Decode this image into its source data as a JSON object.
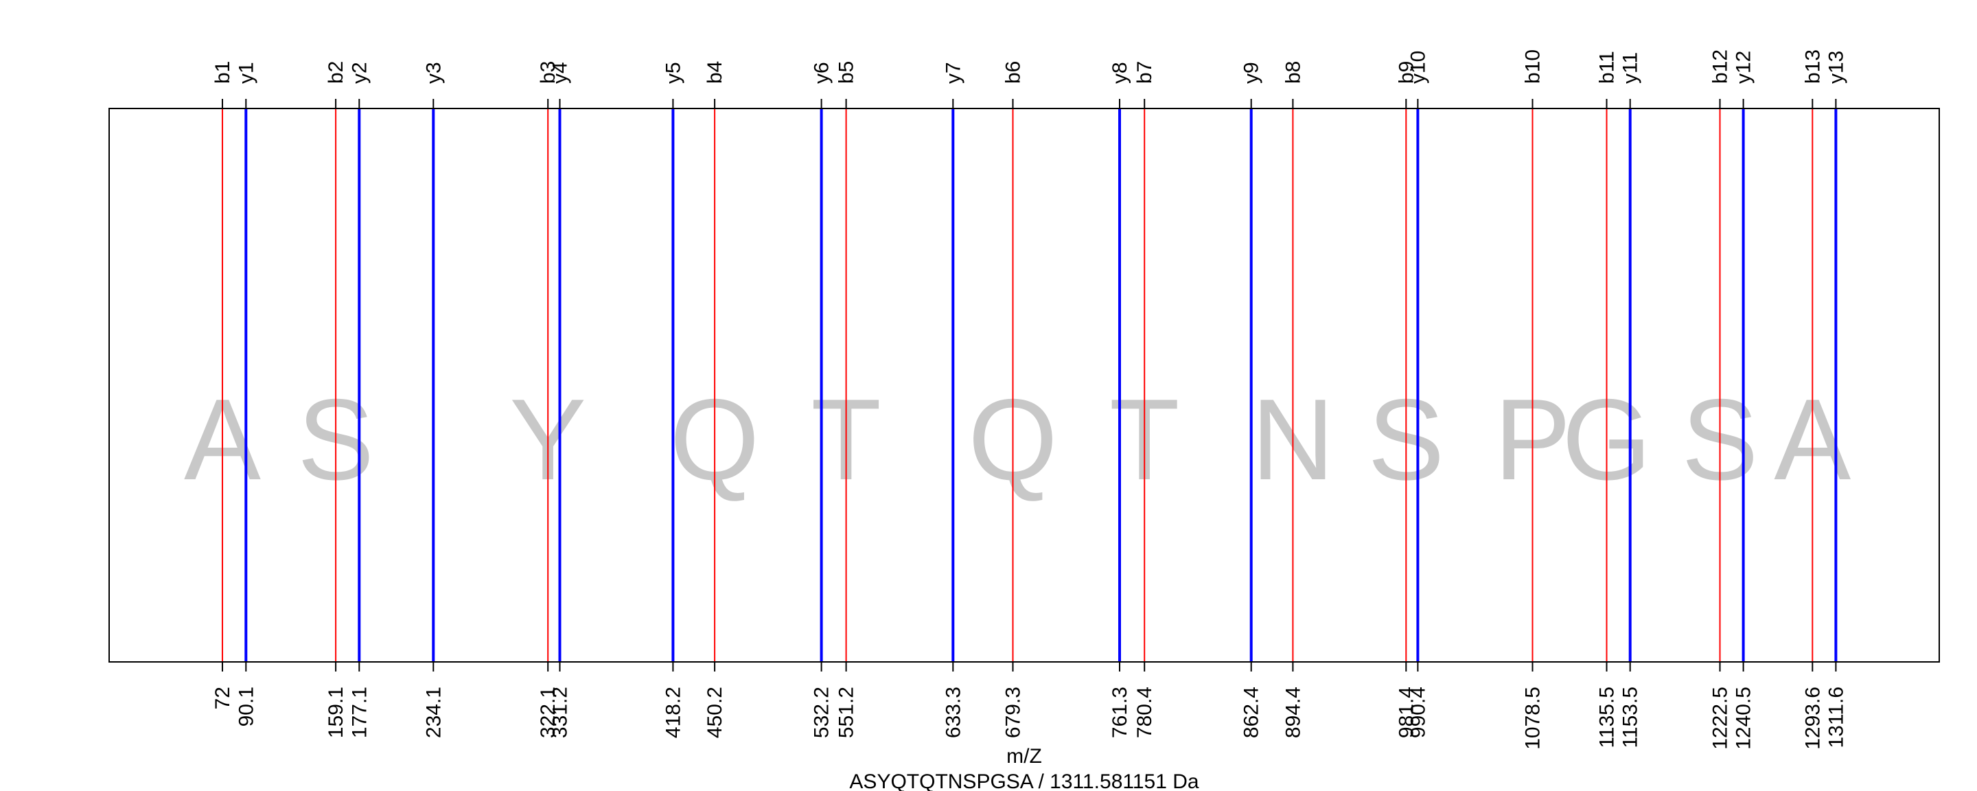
{
  "chart_data": {
    "type": "spectrum",
    "xlabel": "m/Z",
    "caption": "ASYQTQTNSPGSA / 1311.581151 Da",
    "peptide": "ASYQTQTNSPGSA",
    "xlim": [
      -15,
      1391
    ],
    "colors": {
      "b": "#ff0000",
      "y": "#0000ff",
      "residue": "#c8c8c8"
    },
    "series": [
      {
        "name": "b",
        "color": "#ff0000",
        "labels": [
          "b1",
          "b2",
          "b3",
          "b4",
          "b5",
          "b6",
          "b7",
          "b8",
          "b9",
          "b10",
          "b11",
          "b12",
          "b13"
        ],
        "mz": [
          72.0,
          159.1,
          322.1,
          450.2,
          551.2,
          679.3,
          780.4,
          894.4,
          981.4,
          1078.5,
          1135.5,
          1222.5,
          1293.6
        ],
        "tick_labels": [
          "72",
          "159.1",
          "322.1",
          "450.2",
          "551.2",
          "679.3",
          "780.4",
          "894.4",
          "981.4",
          "1078.5",
          "1135.5",
          "1222.5",
          "1293.6"
        ]
      },
      {
        "name": "y",
        "color": "#0000ff",
        "labels": [
          "y1",
          "y2",
          "y3",
          "y4",
          "y5",
          "y6",
          "y7",
          "y8",
          "y9",
          "y10",
          "y11",
          "y12",
          "y13"
        ],
        "mz": [
          90.1,
          177.1,
          234.1,
          331.2,
          418.2,
          532.2,
          633.3,
          761.3,
          862.4,
          990.4,
          1153.5,
          1240.5,
          1311.6
        ],
        "tick_labels": [
          "90.1",
          "177.1",
          "234.1",
          "331.2",
          "418.2",
          "532.2",
          "633.3",
          "761.3",
          "862.4",
          "990.4",
          "1153.5",
          "1240.5",
          "1311.6"
        ]
      }
    ],
    "residues": [
      {
        "letter": "A",
        "mz": 72.0
      },
      {
        "letter": "S",
        "mz": 159.1
      },
      {
        "letter": "Y",
        "mz": 322.1
      },
      {
        "letter": "Q",
        "mz": 450.2
      },
      {
        "letter": "T",
        "mz": 551.2
      },
      {
        "letter": "Q",
        "mz": 679.3
      },
      {
        "letter": "T",
        "mz": 780.4
      },
      {
        "letter": "N",
        "mz": 894.4
      },
      {
        "letter": "S",
        "mz": 981.4
      },
      {
        "letter": "P",
        "mz": 1078.5
      },
      {
        "letter": "G",
        "mz": 1135.5
      },
      {
        "letter": "S",
        "mz": 1222.5
      },
      {
        "letter": "A",
        "mz": 1293.6
      }
    ]
  }
}
